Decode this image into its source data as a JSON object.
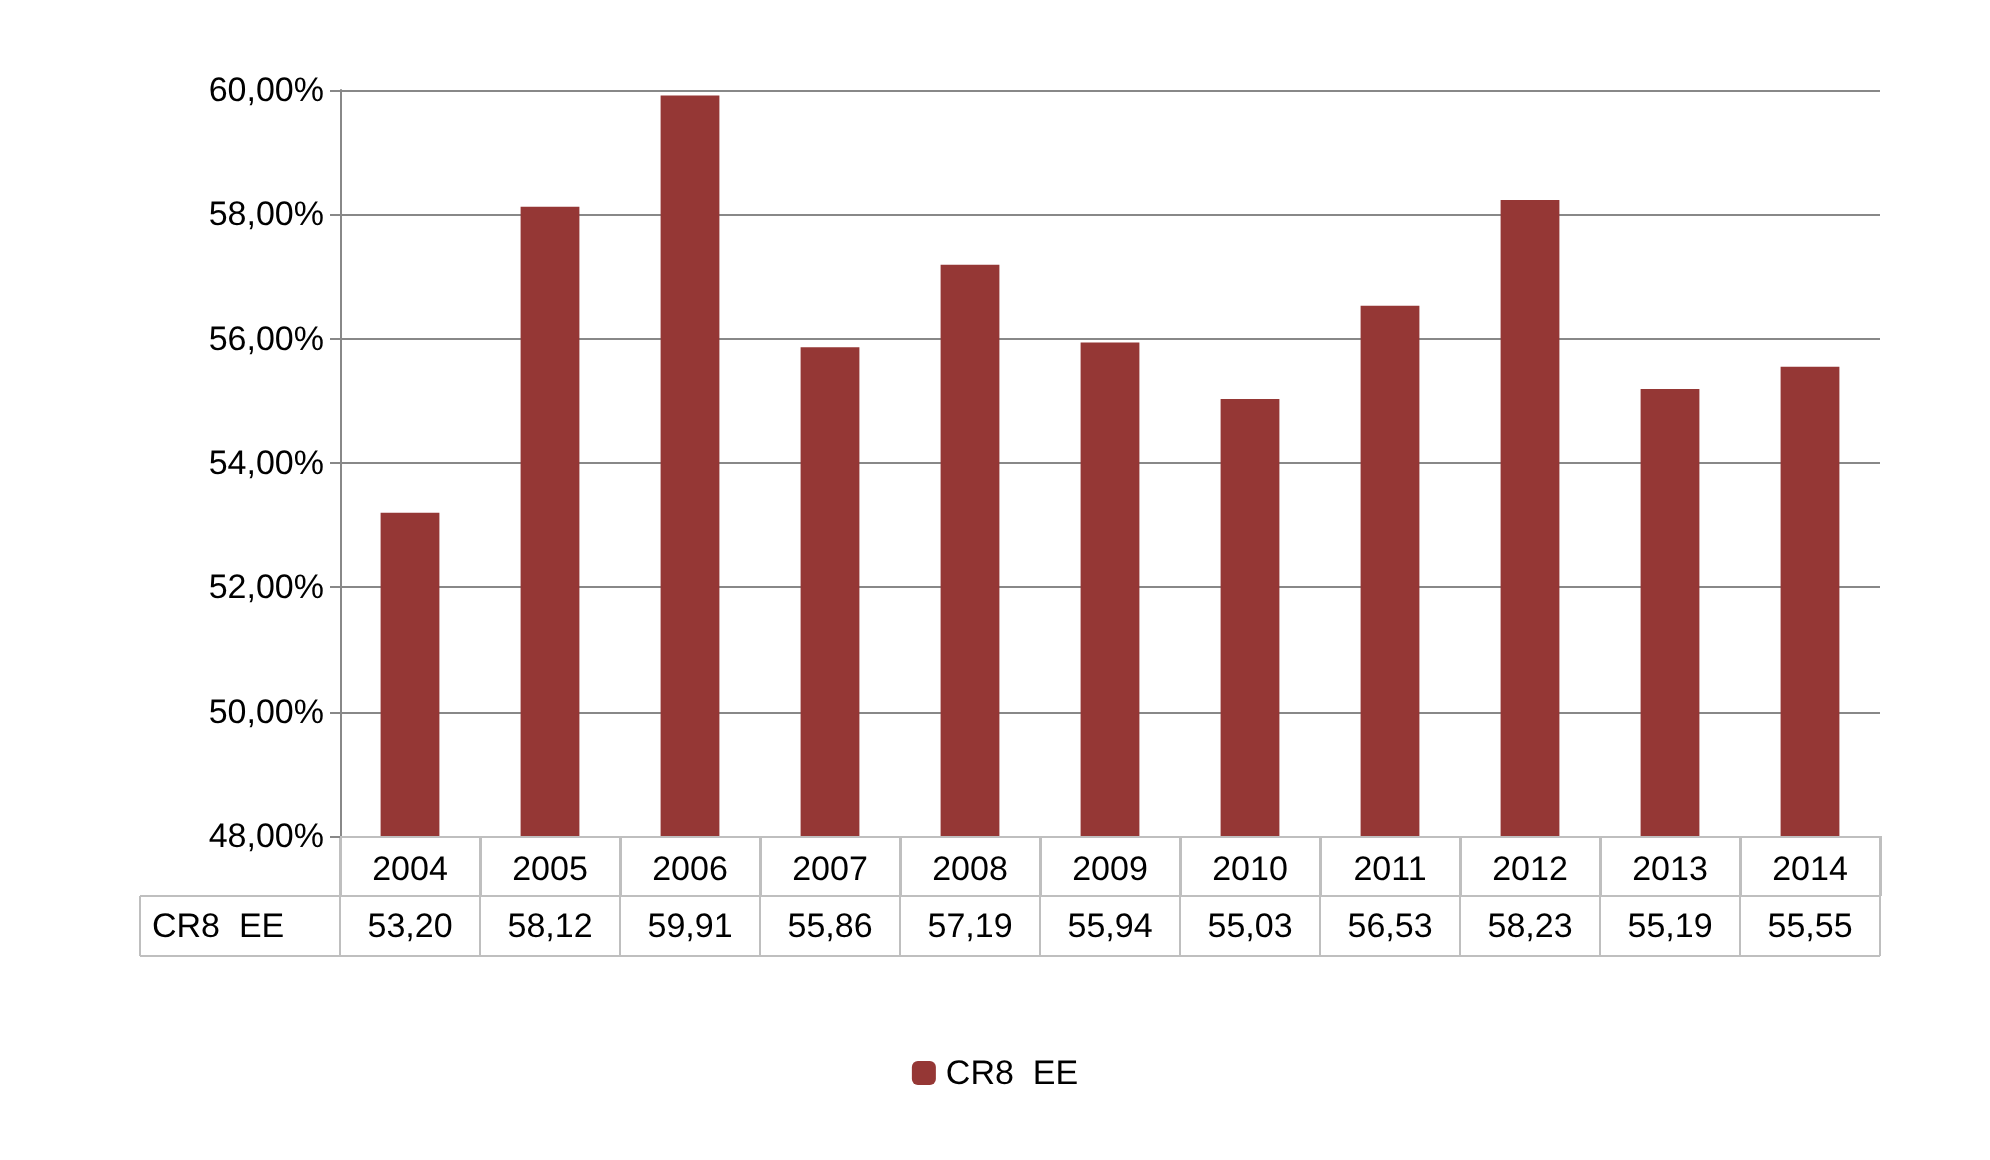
{
  "chart_data": {
    "type": "bar",
    "categories": [
      "2004",
      "2005",
      "2006",
      "2007",
      "2008",
      "2009",
      "2010",
      "2011",
      "2012",
      "2013",
      "2014"
    ],
    "series": [
      {
        "name": "CR8  EE",
        "color": "#953735",
        "values": [
          53.2,
          58.12,
          59.91,
          55.86,
          57.19,
          55.94,
          55.03,
          56.53,
          58.23,
          55.19,
          55.55
        ],
        "value_labels": [
          "53,20",
          "58,12",
          "59,91",
          "55,86",
          "57,19",
          "55,94",
          "55,03",
          "56,53",
          "58,23",
          "55,19",
          "55,55"
        ]
      }
    ],
    "ylim": [
      48,
      60
    ],
    "yticks": [
      {
        "value": 48,
        "label": "48,00%"
      },
      {
        "value": 50,
        "label": "50,00%"
      },
      {
        "value": 52,
        "label": "52,00%"
      },
      {
        "value": 54,
        "label": "54,00%"
      },
      {
        "value": 56,
        "label": "56,00%"
      },
      {
        "value": 58,
        "label": "58,00%"
      },
      {
        "value": 60,
        "label": "60,00%"
      }
    ],
    "grid": "y",
    "legend": "bottom"
  }
}
